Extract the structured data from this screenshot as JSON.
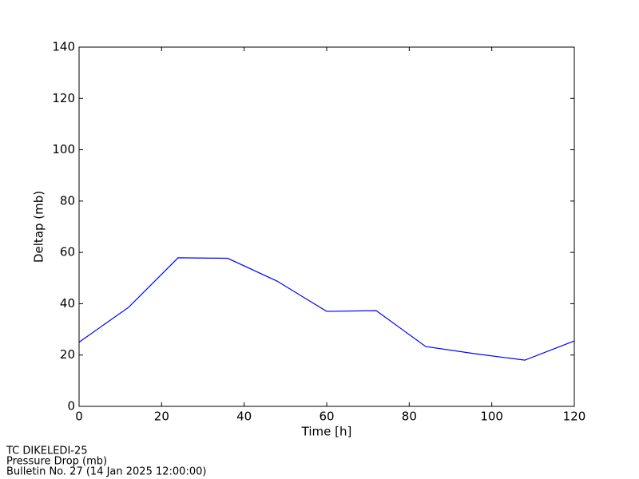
{
  "chart_data": {
    "type": "line",
    "xlabel": "Time [h]",
    "ylabel": "Deltap (mb)",
    "annotations": [
      "TC DIKELEDI-25",
      "Pressure Drop (mb)",
      "Bulletin No. 27 (14 Jan 2025  12:00:00)"
    ],
    "x": [
      0,
      12,
      24,
      36,
      48,
      60,
      72,
      84,
      96,
      108,
      120
    ],
    "series": [
      {
        "color": "#0000ff",
        "values": [
          25,
          38.6,
          57.9,
          57.7,
          48.8,
          37.0,
          37.3,
          23.3,
          20.5,
          18.0,
          25.5
        ]
      }
    ],
    "xlim": [
      0,
      120
    ],
    "xticks": [
      0,
      20,
      40,
      60,
      80,
      100,
      120
    ],
    "ylim": [
      0,
      140
    ],
    "yticks": [
      0,
      20,
      40,
      60,
      80,
      100,
      120,
      140
    ],
    "grid": false
  }
}
